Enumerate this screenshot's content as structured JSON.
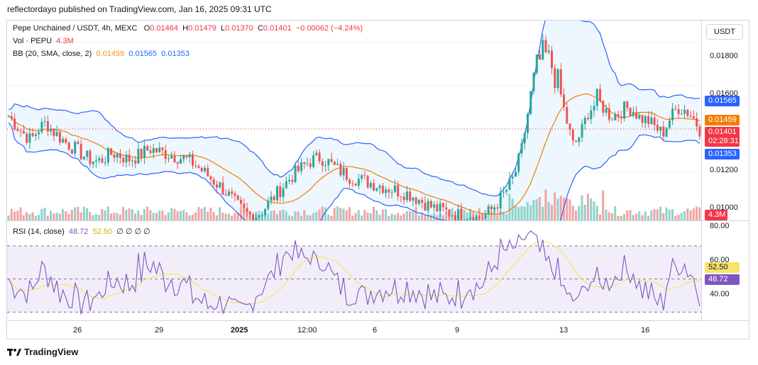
{
  "header": {
    "published_line": "reflectordayo published on TradingView.com, Jan 16, 2025 09:31 UTC"
  },
  "legend": {
    "symbol": "Pepe Unchained / USDT, 4h, MEXC",
    "open_label": "O",
    "open": "0.01464",
    "high_label": "H",
    "high": "0.01479",
    "low_label": "L",
    "low": "0.01370",
    "close_label": "C",
    "close": "0.01401",
    "change": "−0.00062 (−4.24%)",
    "vol_label": "Vol · PEPU",
    "vol_value": "4.3M",
    "bb_label": "BB (20, SMA, close, 2)",
    "bb_basis": "0.01459",
    "bb_upper": "0.01565",
    "bb_lower": "0.01353",
    "rsi_label": "RSI (14, close)",
    "rsi_value": "48.72",
    "rsi_ma": "52.50",
    "rsi_extra": "∅ ∅ ∅ ∅"
  },
  "price_scale": {
    "unit": "USDT",
    "ticks": [
      "0.01800",
      "0.01600",
      "0.01400",
      "0.01200",
      "0.01000"
    ]
  },
  "price_tags": {
    "bb_upper": "0.01565",
    "bb_basis": "0.01459",
    "last": "0.01401",
    "countdown": "02:28:31",
    "bb_lower": "0.01353",
    "volume": "4.3M"
  },
  "rsi_scale": {
    "ticks": [
      "80.00",
      "60.00",
      "40.00"
    ],
    "tag_ma": "52.50",
    "tag_rsi": "48.72"
  },
  "time_axis": {
    "labels": [
      "26",
      "29",
      "2025",
      "12:00",
      "6",
      "9",
      "13",
      "16"
    ]
  },
  "brand": {
    "name": "TradingView"
  },
  "colors": {
    "up": "#26a69a",
    "down": "#ef5350",
    "bb_band": "#2962ff",
    "bb_basis": "#f57c00",
    "rsi": "#7e57c2",
    "rsi_ma": "#f7e36b",
    "vol_up": "#8fd3cb",
    "vol_down": "#f2a4a4"
  },
  "chart_data": {
    "type": "candlestick",
    "price_range": [
      0.0098,
      0.019
    ],
    "seed": {
      "note_free": true,
      "close_path": [
        0.0146,
        0.0142,
        0.0138,
        0.0135,
        0.014,
        0.0143,
        0.0139,
        0.0136,
        0.0133,
        0.0131,
        0.0128,
        0.0126,
        0.0125,
        0.0127,
        0.0129,
        0.0128,
        0.0126,
        0.0127,
        0.0129,
        0.0131,
        0.013,
        0.0129,
        0.0128,
        0.0127,
        0.0126,
        0.0124,
        0.0121,
        0.0118,
        0.0115,
        0.0112,
        0.0108,
        0.0104,
        0.0101,
        0.01,
        0.0102,
        0.0106,
        0.011,
        0.0114,
        0.0118,
        0.0121,
        0.0124,
        0.0126,
        0.0127,
        0.0125,
        0.0122,
        0.012,
        0.0118,
        0.0117,
        0.0116,
        0.0115,
        0.0114,
        0.0113,
        0.0112,
        0.0111,
        0.011,
        0.0108,
        0.0106,
        0.0104,
        0.0103,
        0.0102,
        0.0101,
        0.01,
        0.0101,
        0.0099,
        0.01,
        0.0103,
        0.0107,
        0.0112,
        0.0118,
        0.013,
        0.015,
        0.0168,
        0.0175,
        0.017,
        0.016,
        0.0145,
        0.0132,
        0.0138,
        0.0148,
        0.0152,
        0.015,
        0.0146,
        0.0147,
        0.015,
        0.0149,
        0.0145,
        0.0144,
        0.0141,
        0.0138,
        0.0145,
        0.015,
        0.0149,
        0.0146,
        0.014
      ]
    },
    "bb_upper_last": 0.01565,
    "bb_basis_last": 0.01459,
    "bb_lower_last": 0.01353,
    "rsi_range": [
      25,
      85
    ],
    "rsi_last": 48.72,
    "rsi_ma_last": 52.5
  }
}
